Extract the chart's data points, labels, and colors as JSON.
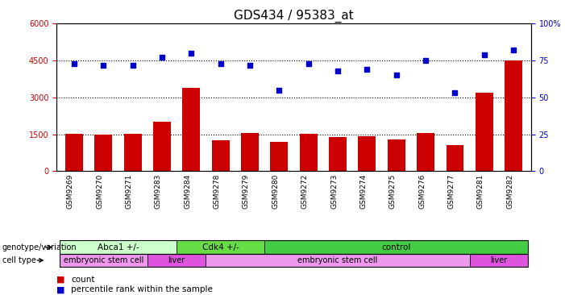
{
  "title": "GDS434 / 95383_at",
  "samples": [
    "GSM9269",
    "GSM9270",
    "GSM9271",
    "GSM9283",
    "GSM9284",
    "GSM9278",
    "GSM9279",
    "GSM9280",
    "GSM9272",
    "GSM9273",
    "GSM9274",
    "GSM9275",
    "GSM9276",
    "GSM9277",
    "GSM9281",
    "GSM9282"
  ],
  "counts": [
    1530,
    1490,
    1530,
    2000,
    3400,
    1250,
    1540,
    1200,
    1520,
    1380,
    1430,
    1300,
    1560,
    1050,
    3200,
    4500
  ],
  "percentiles": [
    73,
    72,
    72,
    77,
    80,
    73,
    72,
    55,
    73,
    68,
    69,
    65,
    75,
    53,
    79,
    82
  ],
  "ylim_left": [
    0,
    6000
  ],
  "ylim_right": [
    0,
    100
  ],
  "yticks_left": [
    0,
    1500,
    3000,
    4500,
    6000
  ],
  "yticks_right": [
    0,
    25,
    50,
    75,
    100
  ],
  "bar_color": "#cc0000",
  "dot_color": "#0000cc",
  "genotype_groups": [
    {
      "label": "Abca1 +/-",
      "start": 0,
      "end": 4,
      "color": "#ccffcc"
    },
    {
      "label": "Cdk4 +/-",
      "start": 4,
      "end": 7,
      "color": "#66dd44"
    },
    {
      "label": "control",
      "start": 7,
      "end": 16,
      "color": "#44cc44"
    }
  ],
  "celltype_groups": [
    {
      "label": "embryonic stem cell",
      "start": 0,
      "end": 3,
      "color": "#ee99ee"
    },
    {
      "label": "liver",
      "start": 3,
      "end": 5,
      "color": "#dd55dd"
    },
    {
      "label": "embryonic stem cell",
      "start": 5,
      "end": 14,
      "color": "#ee99ee"
    },
    {
      "label": "liver",
      "start": 14,
      "end": 16,
      "color": "#dd55dd"
    }
  ],
  "bg_color": "#ffffff",
  "plot_bg": "#ffffff",
  "title_fontsize": 11,
  "tick_fontsize": 7,
  "label_fontsize": 8
}
